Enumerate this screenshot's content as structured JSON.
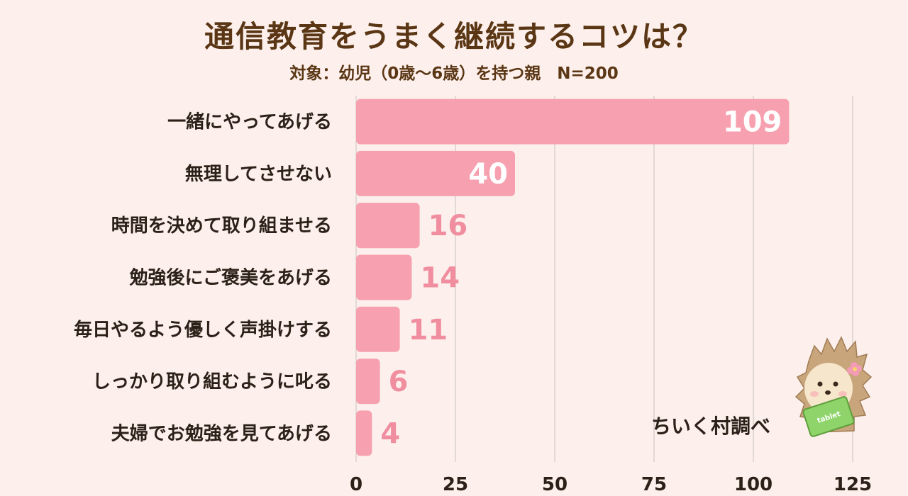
{
  "header": {
    "title": "通信教育をうまく継続するコツは？",
    "subtitle": "対象：幼児（0歳〜6歳）を持つ親　N=200"
  },
  "credit": "ちいく村調べ",
  "mascot": {
    "icon": "hedgehog-mascot-icon",
    "tablet_text": "tablet"
  },
  "colors": {
    "bar": "#f7a0b0",
    "value_label": "#f08ea0",
    "value_label_inside": "#ffffff",
    "grid": "#d9cfcb",
    "background": "#fdf0ec"
  },
  "chart_data": {
    "type": "bar",
    "orientation": "horizontal",
    "categories": [
      "一緒にやってあげる",
      "無理してさせない",
      "時間を決めて取り組ませる",
      "勉強後にご褒美をあげる",
      "毎日やるよう優しく声掛けする",
      "しっかり取り組むように叱る",
      "夫婦でお勉強を見てあげる"
    ],
    "values": [
      109,
      40,
      16,
      14,
      11,
      6,
      4
    ],
    "xlim": [
      0,
      125
    ],
    "xticks": [
      0,
      25,
      50,
      75,
      100,
      125
    ],
    "grid": true,
    "legend": "none"
  }
}
